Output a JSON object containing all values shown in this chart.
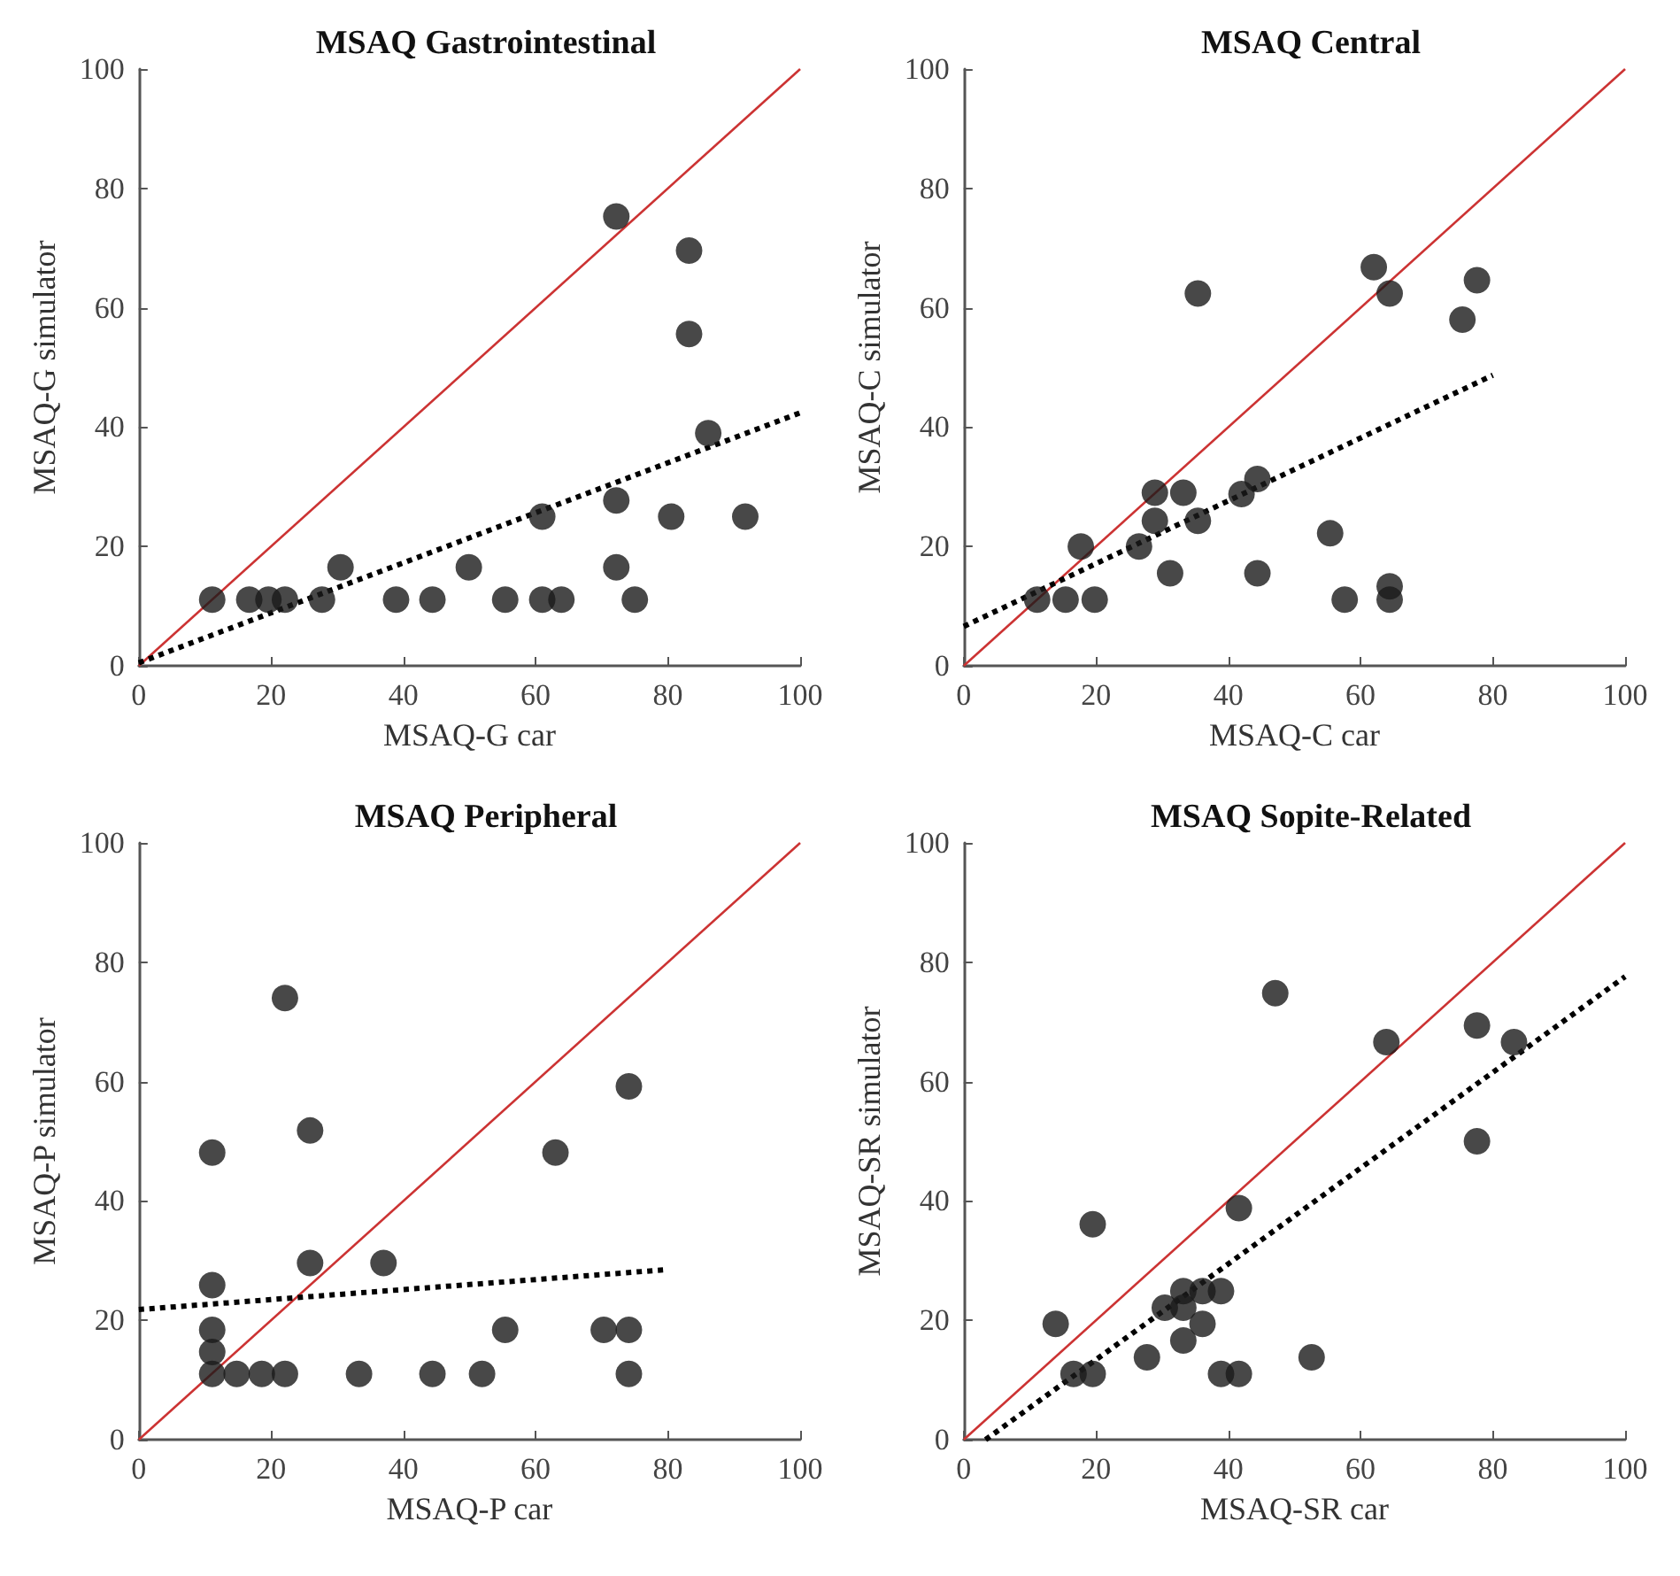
{
  "chart_data": [
    {
      "type": "scatter",
      "title": "MSAQ Gastrointestinal",
      "xlabel": "MSAQ-G car",
      "ylabel": "MSAQ-G simulator",
      "xlim": [
        0,
        100
      ],
      "ylim": [
        0,
        100
      ],
      "xticks": [
        0,
        20,
        40,
        60,
        80,
        100
      ],
      "yticks": [
        0,
        20,
        40,
        60,
        80,
        100
      ],
      "grid": false,
      "series": [
        {
          "type": "line",
          "color": "#cc3333",
          "marker": "none",
          "line_style": "solid",
          "x": [
            0,
            100
          ],
          "values": [
            0,
            100
          ]
        },
        {
          "type": "line",
          "color": "#000000",
          "marker": "none",
          "line_style": "dotted",
          "x": [
            0,
            100
          ],
          "values": [
            0.5,
            42.4
          ]
        },
        {
          "color": "#1a1a1a",
          "marker": "circle",
          "x": [
            11.1,
            16.7,
            19.6,
            22.1,
            27.7,
            30.5,
            38.9,
            44.4,
            49.9,
            55.4,
            61,
            61,
            63.9,
            72.2,
            72.2,
            72.2,
            75,
            80.5,
            83.2,
            83.2,
            86.1,
            91.7
          ],
          "values": [
            11.1,
            11.1,
            11.1,
            11.1,
            11.1,
            16.5,
            11.1,
            11.1,
            16.5,
            11.1,
            25,
            11.1,
            11.1,
            75.3,
            27.7,
            16.5,
            11.1,
            25,
            69.6,
            55.6,
            39,
            25
          ]
        }
      ]
    },
    {
      "type": "scatter",
      "title": "MSAQ Central",
      "xlabel": "MSAQ-C car",
      "ylabel": "MSAQ-C simulator",
      "xlim": [
        0,
        100
      ],
      "ylim": [
        0,
        100
      ],
      "xticks": [
        0,
        20,
        40,
        60,
        80,
        100
      ],
      "yticks": [
        0,
        20,
        40,
        60,
        80,
        100
      ],
      "grid": false,
      "series": [
        {
          "type": "line",
          "color": "#cc3333",
          "marker": "none",
          "line_style": "solid",
          "x": [
            0,
            100
          ],
          "values": [
            0,
            100
          ]
        },
        {
          "type": "line",
          "color": "#000000",
          "marker": "none",
          "line_style": "dotted",
          "x": [
            0,
            80
          ],
          "values": [
            6.6,
            48.7
          ]
        },
        {
          "color": "#1a1a1a",
          "marker": "circle",
          "x": [
            11.1,
            15.4,
            19.8,
            17.7,
            26.5,
            28.9,
            28.9,
            31.2,
            33.2,
            35.4,
            35.4,
            42,
            44.4,
            44.4,
            55.4,
            57.6,
            62,
            64.4,
            64.4,
            64.4,
            75.4,
            77.6
          ],
          "values": [
            11.1,
            11.1,
            11.1,
            20,
            20,
            29,
            24.3,
            15.5,
            29,
            24.3,
            62.4,
            28.8,
            31.3,
            15.5,
            22.2,
            11.1,
            66.8,
            62.4,
            13.3,
            11.1,
            58,
            64.6
          ]
        }
      ]
    },
    {
      "type": "scatter",
      "title": "MSAQ Peripheral",
      "xlabel": "MSAQ-P car",
      "ylabel": "MSAQ-P simulator",
      "xlim": [
        0,
        100
      ],
      "ylim": [
        0,
        100
      ],
      "xticks": [
        0,
        20,
        40,
        60,
        80,
        100
      ],
      "yticks": [
        0,
        20,
        40,
        60,
        80,
        100
      ],
      "grid": false,
      "series": [
        {
          "type": "line",
          "color": "#cc3333",
          "marker": "none",
          "line_style": "solid",
          "x": [
            0,
            100
          ],
          "values": [
            0,
            100
          ]
        },
        {
          "type": "line",
          "color": "#000000",
          "marker": "none",
          "line_style": "dotted",
          "x": [
            0,
            80
          ],
          "values": [
            21.8,
            28.5
          ]
        },
        {
          "color": "#1a1a1a",
          "marker": "circle",
          "x": [
            11.1,
            11.1,
            11.1,
            11.1,
            11.1,
            14.8,
            18.6,
            22.1,
            22.1,
            25.9,
            25.9,
            33.3,
            37,
            44.4,
            51.9,
            55.4,
            63,
            70.3,
            74.1,
            74.1,
            74.1
          ],
          "values": [
            48.1,
            25.9,
            18.4,
            14.7,
            11,
            11,
            11,
            11,
            74,
            51.8,
            29.6,
            11,
            29.6,
            11,
            11,
            18.4,
            48.1,
            18.4,
            18.4,
            59.2,
            11
          ]
        }
      ]
    },
    {
      "type": "scatter",
      "title": "MSAQ Sopite-Related",
      "xlabel": "MSAQ-SR car",
      "ylabel": "MSAQ-SR simulator",
      "xlim": [
        0,
        100
      ],
      "ylim": [
        0,
        100
      ],
      "xticks": [
        0,
        20,
        40,
        60,
        80,
        100
      ],
      "yticks": [
        0,
        20,
        40,
        60,
        80,
        100
      ],
      "grid": false,
      "series": [
        {
          "type": "line",
          "color": "#cc3333",
          "marker": "none",
          "line_style": "solid",
          "x": [
            0,
            100
          ],
          "values": [
            0,
            100
          ]
        },
        {
          "type": "line",
          "color": "#000000",
          "marker": "none",
          "line_style": "dotted",
          "x": [
            3.3,
            100
          ],
          "values": [
            0,
            77.6
          ]
        },
        {
          "color": "#1a1a1a",
          "marker": "circle",
          "x": [
            13.9,
            16.6,
            19.5,
            19.5,
            27.7,
            30.4,
            33.2,
            33.2,
            33.2,
            36.1,
            36.1,
            38.9,
            38.9,
            41.6,
            41.6,
            47.1,
            52.6,
            63.9,
            77.6,
            77.6,
            83.2
          ],
          "values": [
            19.4,
            11,
            11,
            36.1,
            13.8,
            22.1,
            24.9,
            22.1,
            16.6,
            24.9,
            19.4,
            24.9,
            11,
            11,
            38.8,
            74.8,
            13.8,
            66.6,
            69.4,
            50,
            66.6
          ]
        }
      ]
    }
  ]
}
